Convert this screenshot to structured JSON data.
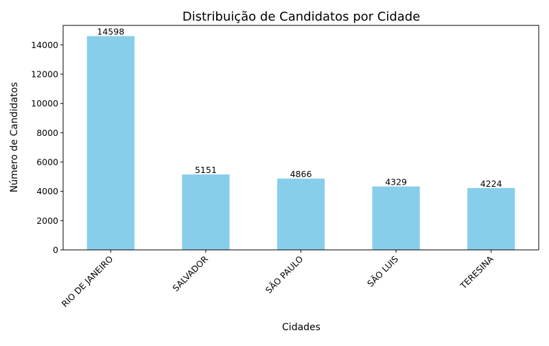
{
  "chart_data": {
    "type": "bar",
    "title": "Distribuição de Candidatos por Cidade",
    "xlabel": "Cidades",
    "ylabel": "Número de Candidatos",
    "categories": [
      "RIO DE JANEIRO",
      "SALVADOR",
      "SÃO PAULO",
      "SÃO LUIS",
      "TERESINA"
    ],
    "values": [
      14598,
      5151,
      4866,
      4329,
      4224
    ],
    "ylim": [
      0,
      15328
    ],
    "yticks": [
      0,
      2000,
      4000,
      6000,
      8000,
      10000,
      12000,
      14000
    ],
    "grid": false,
    "legend": "none",
    "bar_color": "#87CEEB",
    "x_tick_rotation_deg": 45
  }
}
